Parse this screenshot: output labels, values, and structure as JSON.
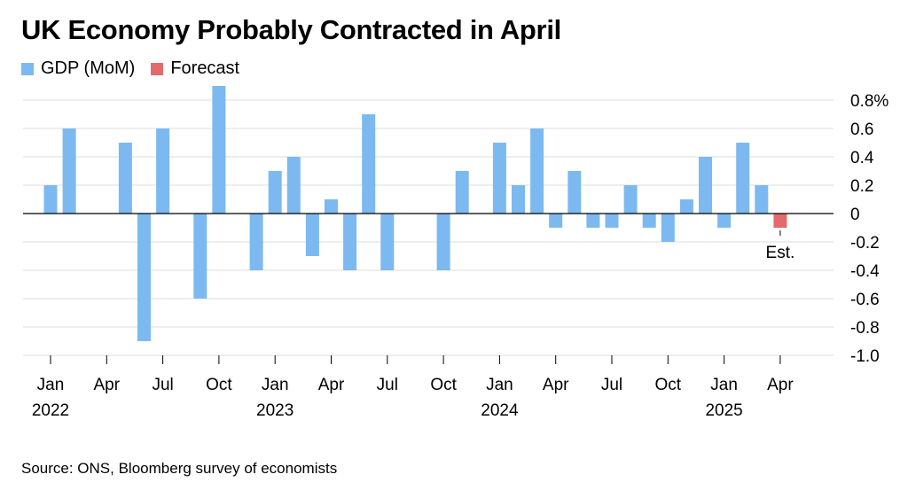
{
  "chart_data": {
    "type": "bar",
    "title": "UK Economy Probably Contracted in April",
    "source": "Source: ONS, Bloomberg survey of economists",
    "legend": [
      {
        "name": "GDP (MoM)",
        "color": "#7cb9f0"
      },
      {
        "name": "Forecast",
        "color": "#e36b6b"
      }
    ],
    "ylim": [
      -1.0,
      0.8
    ],
    "y_ticks": [
      0.8,
      0.6,
      0.4,
      0.2,
      0,
      -0.2,
      -0.4,
      -0.6,
      -0.8,
      -1.0
    ],
    "y_tick_labels": [
      "0.8%",
      "0.6",
      "0.4",
      "0.2",
      "0",
      "-0.2",
      "-0.4",
      "-0.6",
      "-0.8",
      "-1.0"
    ],
    "grid": true,
    "x_labels": [
      {
        "index": 0,
        "month": "Jan",
        "year": "2022"
      },
      {
        "index": 3,
        "month": "Apr",
        "year": ""
      },
      {
        "index": 6,
        "month": "Jul",
        "year": ""
      },
      {
        "index": 9,
        "month": "Oct",
        "year": ""
      },
      {
        "index": 12,
        "month": "Jan",
        "year": "2023"
      },
      {
        "index": 15,
        "month": "Apr",
        "year": ""
      },
      {
        "index": 18,
        "month": "Jul",
        "year": ""
      },
      {
        "index": 21,
        "month": "Oct",
        "year": ""
      },
      {
        "index": 24,
        "month": "Jan",
        "year": "2024"
      },
      {
        "index": 27,
        "month": "Apr",
        "year": ""
      },
      {
        "index": 30,
        "month": "Jul",
        "year": ""
      },
      {
        "index": 33,
        "month": "Oct",
        "year": ""
      },
      {
        "index": 36,
        "month": "Jan",
        "year": "2025"
      },
      {
        "index": 39,
        "month": "Apr",
        "year": ""
      }
    ],
    "series": [
      {
        "name": "GDP (MoM)",
        "color": "#7cb9f0",
        "x": [
          "2022-01",
          "2022-02",
          "2022-03",
          "2022-04",
          "2022-05",
          "2022-06",
          "2022-07",
          "2022-08",
          "2022-09",
          "2022-10",
          "2022-11",
          "2022-12",
          "2023-01",
          "2023-02",
          "2023-03",
          "2023-04",
          "2023-05",
          "2023-06",
          "2023-07",
          "2023-08",
          "2023-09",
          "2023-10",
          "2023-11",
          "2023-12",
          "2024-01",
          "2024-02",
          "2024-03",
          "2024-04",
          "2024-05",
          "2024-06",
          "2024-07",
          "2024-08",
          "2024-09",
          "2024-10",
          "2024-11",
          "2024-12",
          "2025-01",
          "2025-02",
          "2025-03"
        ],
        "values": [
          0.2,
          0.6,
          0.0,
          0.0,
          0.5,
          -0.9,
          0.6,
          0.0,
          -0.6,
          0.9,
          0.0,
          -0.4,
          0.3,
          0.4,
          -0.3,
          0.1,
          -0.4,
          0.7,
          -0.4,
          0.0,
          0.0,
          -0.4,
          0.3,
          0.0,
          0.5,
          0.2,
          0.6,
          -0.1,
          0.3,
          -0.1,
          -0.1,
          0.2,
          -0.1,
          -0.2,
          0.1,
          0.4,
          -0.1,
          0.5,
          0.2
        ]
      },
      {
        "name": "Forecast",
        "color": "#e36b6b",
        "x": [
          "2025-04"
        ],
        "values": [
          -0.1
        ]
      }
    ],
    "annotations": [
      {
        "text": "Est.",
        "x": "2025-04"
      }
    ]
  }
}
